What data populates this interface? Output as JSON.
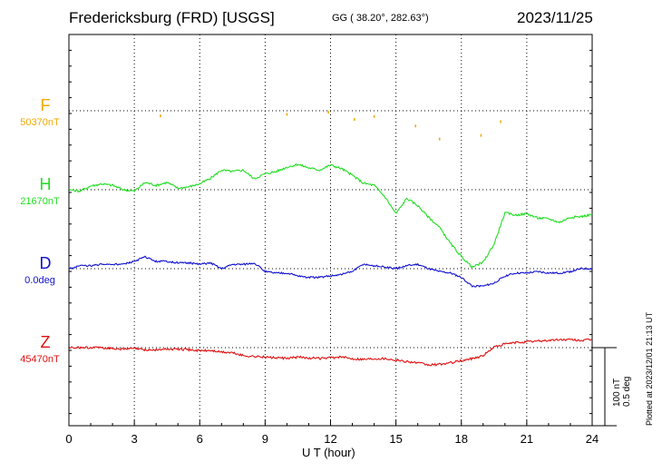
{
  "header": {
    "station": "Fredericksburg (FRD)  [USGS]",
    "coords": "GG ( 38.20°, 282.63°)",
    "date": "2023/11/25"
  },
  "colors": {
    "F": "#f0a800",
    "H": "#22dd22",
    "D": "#1010d0",
    "Z": "#e01010",
    "frame": "#000000",
    "grid": "#000000"
  },
  "scale_bar": {
    "nt": "100 nT",
    "deg": "0.5 deg"
  },
  "footer": {
    "plotted": "Plotted at 2023/12/01 21:13 UT"
  },
  "chart_data": {
    "type": "line",
    "title": "Fredericksburg (FRD)  [USGS]",
    "xlabel": "U T (hour)",
    "ylabel": "",
    "x_ticks": [
      "0",
      "3",
      "6",
      "9",
      "12",
      "15",
      "18",
      "21",
      "24"
    ],
    "xlim": [
      0,
      24
    ],
    "grid": true,
    "y_unit": "nT",
    "components": [
      {
        "key": "F",
        "label": "F",
        "baseline_label": "50370nT",
        "baseline": 50370,
        "style": "dots",
        "x": [
          4.2,
          10.0,
          11.9,
          13.1,
          14.0,
          15.9,
          17.0,
          18.9,
          19.8
        ],
        "y": [
          50363,
          50365,
          50368,
          50358,
          50362,
          50349,
          50331,
          50336,
          50355
        ]
      },
      {
        "key": "H",
        "label": "H",
        "baseline_label": "21670nT",
        "baseline": 21670,
        "style": "line",
        "x": [
          0,
          0.5,
          1.0,
          1.5,
          2.0,
          2.5,
          3.0,
          3.5,
          4.0,
          4.5,
          5.0,
          5.5,
          6.0,
          6.5,
          7.0,
          7.5,
          8.0,
          8.5,
          9.0,
          9.5,
          10.0,
          10.5,
          11.0,
          11.5,
          12.0,
          12.5,
          13.0,
          13.5,
          14.0,
          14.5,
          15.0,
          15.5,
          16.0,
          16.5,
          17.0,
          17.5,
          18.0,
          18.5,
          19.0,
          19.5,
          20.0,
          20.5,
          21.0,
          21.5,
          22.0,
          22.5,
          23.0,
          23.5,
          24.0
        ],
        "y": [
          21670,
          21668,
          21675,
          21678,
          21676,
          21670,
          21668,
          21680,
          21676,
          21680,
          21672,
          21674,
          21678,
          21686,
          21697,
          21695,
          21697,
          21685,
          21692,
          21695,
          21701,
          21705,
          21700,
          21697,
          21704,
          21699,
          21690,
          21679,
          21676,
          21660,
          21637,
          21658,
          21648,
          21632,
          21618,
          21596,
          21578,
          21563,
          21570,
          21595,
          21638,
          21635,
          21637,
          21631,
          21630,
          21625,
          21632,
          21633,
          21636
        ]
      },
      {
        "key": "D",
        "label": "D",
        "baseline_label": "0.0deg",
        "baseline": 0.0,
        "style": "line",
        "x": [
          0,
          0.5,
          1.0,
          1.5,
          2.0,
          2.5,
          3.0,
          3.5,
          4.0,
          4.5,
          5.0,
          5.5,
          6.0,
          6.5,
          7.0,
          7.5,
          8.0,
          8.5,
          9.0,
          9.5,
          10.0,
          10.5,
          11.0,
          11.5,
          12.0,
          12.5,
          13.0,
          13.5,
          14.0,
          14.5,
          15.0,
          15.5,
          16.0,
          16.5,
          17.0,
          17.5,
          18.0,
          18.5,
          19.0,
          19.5,
          20.0,
          20.5,
          21.0,
          21.5,
          22.0,
          22.5,
          23.0,
          23.5,
          24.0
        ],
        "y": [
          0.0,
          0.02,
          0.02,
          0.03,
          0.03,
          0.03,
          0.05,
          0.08,
          0.05,
          0.05,
          0.04,
          0.04,
          0.03,
          0.04,
          0.0,
          0.03,
          0.03,
          0.04,
          -0.02,
          -0.03,
          -0.03,
          -0.05,
          -0.06,
          -0.06,
          -0.05,
          -0.04,
          -0.02,
          0.03,
          0.02,
          0.01,
          0.0,
          0.02,
          0.03,
          0.0,
          -0.02,
          -0.03,
          -0.06,
          -0.12,
          -0.12,
          -0.1,
          -0.05,
          -0.03,
          -0.03,
          -0.02,
          -0.03,
          -0.03,
          -0.02,
          0.0,
          0.0
        ]
      },
      {
        "key": "Z",
        "label": "Z",
        "baseline_label": "45470nT",
        "baseline": 45470,
        "style": "line",
        "x": [
          0,
          0.5,
          1.0,
          1.5,
          2.0,
          2.5,
          3.0,
          3.5,
          4.0,
          4.5,
          5.0,
          5.5,
          6.0,
          6.5,
          7.0,
          7.5,
          8.0,
          8.5,
          9.0,
          9.5,
          10.0,
          10.5,
          11.0,
          11.5,
          12.0,
          12.5,
          13.0,
          13.5,
          14.0,
          14.5,
          15.0,
          15.5,
          16.0,
          16.5,
          17.0,
          17.5,
          18.0,
          18.5,
          19.0,
          19.5,
          20.0,
          20.5,
          21.0,
          21.5,
          22.0,
          22.5,
          23.0,
          23.5,
          24.0
        ],
        "y": [
          45470,
          45470,
          45470,
          45470,
          45469,
          45468,
          45469,
          45467,
          45467,
          45468,
          45468,
          45467,
          45466,
          45466,
          45464,
          45463,
          45459,
          45458,
          45457,
          45456,
          45455,
          45457,
          45456,
          45455,
          45456,
          45457,
          45455,
          45454,
          45455,
          45455,
          45453,
          45451,
          45449,
          45446,
          45447,
          45449,
          45452,
          45455,
          45459,
          45471,
          45475,
          45477,
          45478,
          45479,
          45480,
          45481,
          45481,
          45480,
          45481
        ]
      }
    ]
  }
}
